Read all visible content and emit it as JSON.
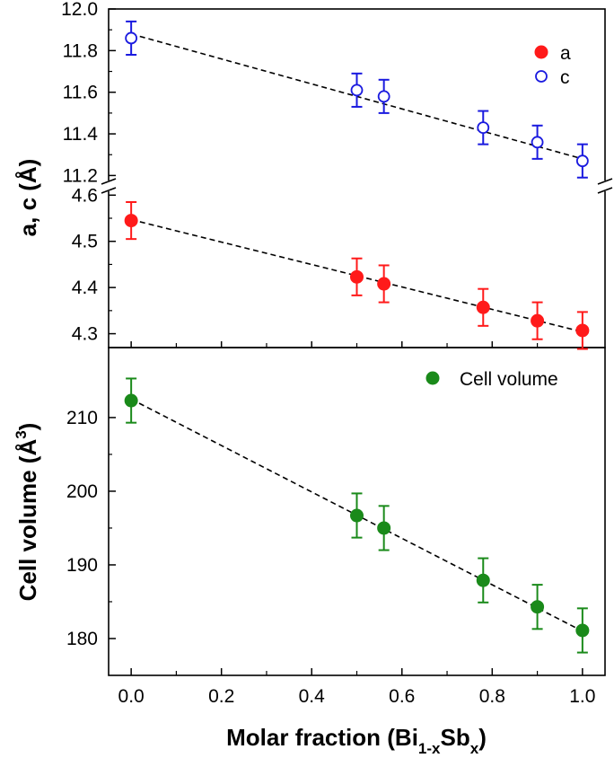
{
  "chart_data": [
    {
      "type": "scatter",
      "panel": "top-upper",
      "ylim": [
        11.15,
        12.0
      ],
      "yticks": [
        "11.2",
        "11.4",
        "11.6",
        "11.8",
        "12.0"
      ],
      "legend_position": "top-right",
      "series": [
        {
          "name": "c",
          "marker": "open-circle",
          "color": "#1a1adf",
          "x": [
            0.0,
            0.5,
            0.56,
            0.78,
            0.9,
            1.0
          ],
          "y": [
            11.86,
            11.61,
            11.58,
            11.43,
            11.36,
            11.27
          ],
          "err": [
            0.08,
            0.08,
            0.08,
            0.08,
            0.08,
            0.08
          ],
          "fit": [
            11.88,
            11.28
          ]
        }
      ]
    },
    {
      "type": "scatter",
      "panel": "top-lower",
      "ylim": [
        4.27,
        4.62
      ],
      "yticks": [
        "4.3",
        "4.4",
        "4.5",
        "4.6"
      ],
      "series": [
        {
          "name": "a",
          "marker": "filled-circle",
          "color": "#ff1a1a",
          "x": [
            0.0,
            0.5,
            0.56,
            0.78,
            0.9,
            1.0
          ],
          "y": [
            4.545,
            4.423,
            4.408,
            4.357,
            4.328,
            4.307
          ],
          "err": [
            0.04,
            0.04,
            0.04,
            0.04,
            0.04,
            0.04
          ],
          "fit": [
            4.547,
            4.304
          ]
        }
      ]
    },
    {
      "type": "scatter",
      "panel": "bottom",
      "ylim": [
        175,
        219.5
      ],
      "yticks": [
        "180",
        "190",
        "200",
        "210"
      ],
      "legend_position": "top-right",
      "series": [
        {
          "name": "Cell volume",
          "marker": "filled-circle",
          "color": "#1a8a1a",
          "x": [
            0.0,
            0.5,
            0.56,
            0.78,
            0.9,
            1.0
          ],
          "y": [
            212.3,
            196.7,
            195.0,
            187.9,
            184.3,
            181.1
          ],
          "err": [
            3.0,
            3.0,
            3.0,
            3.0,
            3.0,
            3.0
          ],
          "fit": [
            212.5,
            181.0
          ]
        }
      ]
    }
  ],
  "axes": {
    "xlim": [
      -0.05,
      1.05
    ],
    "xticks": [
      "0.0",
      "0.2",
      "0.4",
      "0.6",
      "0.8",
      "1.0"
    ],
    "xlabel": {
      "main": "Molar fraction (Bi",
      "sub1": "1-x",
      "mid": "Sb",
      "sub2": "x",
      "end": ")"
    },
    "ylabel_top": "a, c (Å)",
    "ylabel_bottom": {
      "main": "Cell volume (Å",
      "sup": "3",
      "end": ")"
    }
  }
}
